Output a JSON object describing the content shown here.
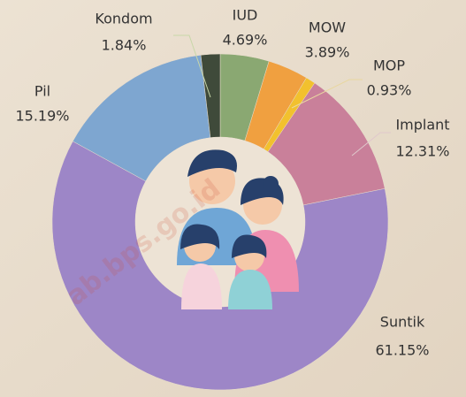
{
  "chart_data": {
    "type": "donut",
    "categories": [
      "IUD",
      "MOW",
      "MOP",
      "Implant",
      "Suntik",
      "Pil",
      "Kondom"
    ],
    "values": [
      4.69,
      3.89,
      0.93,
      12.31,
      61.15,
      15.19,
      1.84
    ],
    "value_labels": [
      "4.69%",
      "3.89%",
      "0.93%",
      "12.31%",
      "61.15%",
      "15.19%",
      "1.84%"
    ],
    "colors": [
      "#8aa872",
      "#f0a040",
      "#f2c12e",
      "#c9809a",
      "#9d86c7",
      "#7ea6d0",
      "#3f4a3a"
    ],
    "watermark": "ab.bps.go.id"
  }
}
